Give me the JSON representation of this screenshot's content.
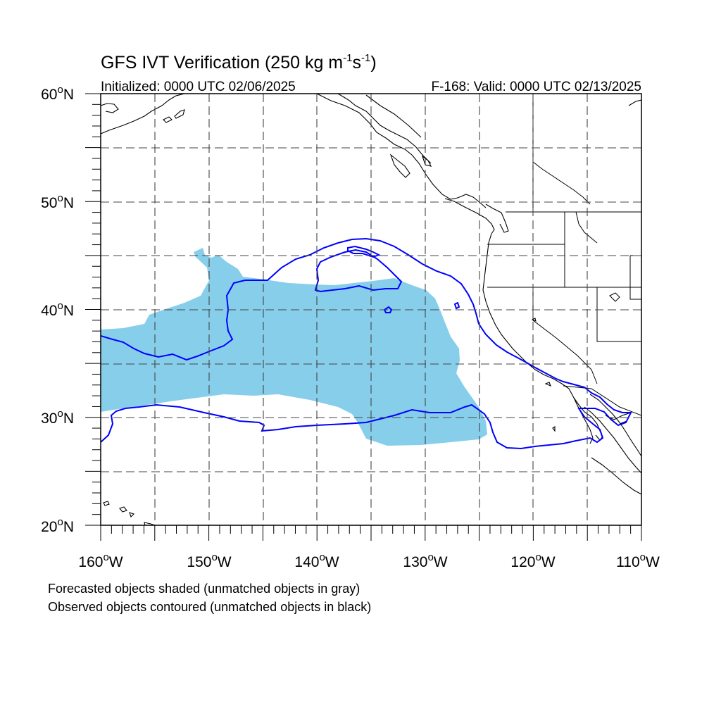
{
  "title": {
    "main": "GFS IVT Verification (250 kg m",
    "sup1": "-1",
    "mid": "s",
    "sup2": "-1",
    "end": ")"
  },
  "subtitle_left": "Initialized: 0000 UTC 02/06/2025",
  "subtitle_right": "F-168: Valid: 0000 UTC 02/13/2025",
  "axes": {
    "lat_labels": [
      "60",
      "50",
      "40",
      "30",
      "20"
    ],
    "lat_suffix": "N",
    "lon_labels": [
      "160",
      "150",
      "140",
      "130",
      "120",
      "110"
    ],
    "lon_suffix": "W",
    "deg": "o",
    "lon_range": [
      -160,
      -110
    ],
    "lat_range": [
      20,
      60
    ],
    "grid": "dashed every 5 degrees"
  },
  "captions": {
    "line1": "Forecasted objects shaded (unmatched objects in gray)",
    "line2": "Observed objects contoured (unmatched objects in black)"
  },
  "colors": {
    "forecast_fill": "#87ceeb",
    "observed_contour": "#0000ff",
    "coastline": "#000000",
    "grid": "#555555"
  }
}
